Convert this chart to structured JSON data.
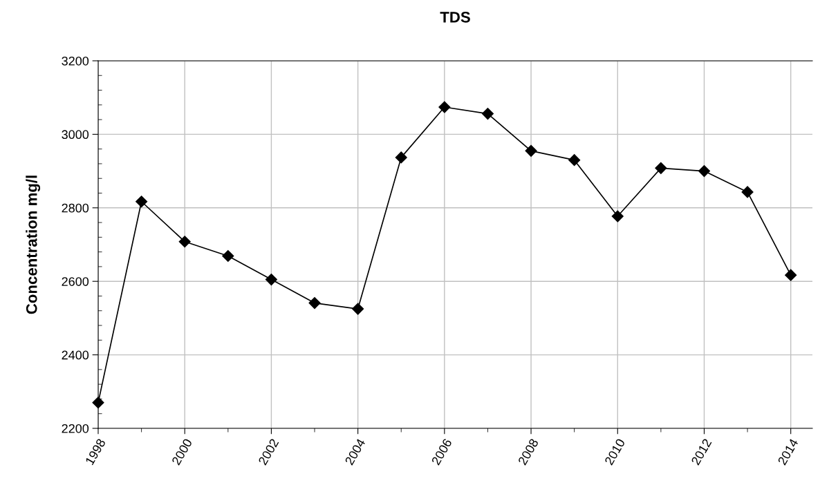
{
  "chart_data": {
    "type": "line",
    "title": "TDS",
    "ylabel": "Concentration mg/l",
    "x": [
      1998,
      1999,
      2000,
      2001,
      2002,
      2003,
      2004,
      2005,
      2006,
      2007,
      2008,
      2009,
      2010,
      2011,
      2012,
      2013,
      2014
    ],
    "series": [
      {
        "color": "#000000",
        "values": [
          2270,
          2817,
          2708,
          2669,
          2605,
          2541,
          2525,
          2937,
          3074,
          3056,
          2955,
          2930,
          2777,
          2908,
          2900,
          2843,
          2617
        ]
      }
    ],
    "xlim": [
      1998,
      2014.5
    ],
    "xticks": [
      1998,
      {
        "value": 1999,
        "label": null
      },
      2000,
      {
        "value": 2001,
        "label": null
      },
      2002,
      {
        "value": 2003,
        "label": null
      },
      2004,
      {
        "value": 2005,
        "label": null
      },
      2006,
      {
        "value": 2007,
        "label": null
      },
      2008,
      {
        "value": 2009,
        "label": null
      },
      2010,
      {
        "value": 2011,
        "label": null
      },
      2012,
      {
        "value": 2013,
        "label": null
      },
      2014
    ],
    "ylim": [
      2200,
      3200
    ],
    "yticks": [
      2200,
      {
        "value": 2240,
        "label": null
      },
      {
        "value": 2280,
        "label": null
      },
      {
        "value": 2320,
        "label": null
      },
      {
        "value": 2360,
        "label": null
      },
      2400,
      {
        "value": 2440,
        "label": null
      },
      {
        "value": 2480,
        "label": null
      },
      {
        "value": 2520,
        "label": null
      },
      {
        "value": 2560,
        "label": null
      },
      2600,
      {
        "value": 2640,
        "label": null
      },
      {
        "value": 2680,
        "label": null
      },
      {
        "value": 2720,
        "label": null
      },
      {
        "value": 2760,
        "label": null
      },
      2800,
      {
        "value": 2840,
        "label": null
      },
      {
        "value": 2880,
        "label": null
      },
      {
        "value": 2920,
        "label": null
      },
      {
        "value": 2960,
        "label": null
      },
      3000,
      {
        "value": 3040,
        "label": null
      },
      {
        "value": 3080,
        "label": null
      },
      {
        "value": 3120,
        "label": null
      },
      {
        "value": 3160,
        "label": null
      },
      3200
    ],
    "grid": true,
    "legend": false,
    "marker": "diamond",
    "line_style": "solid"
  }
}
